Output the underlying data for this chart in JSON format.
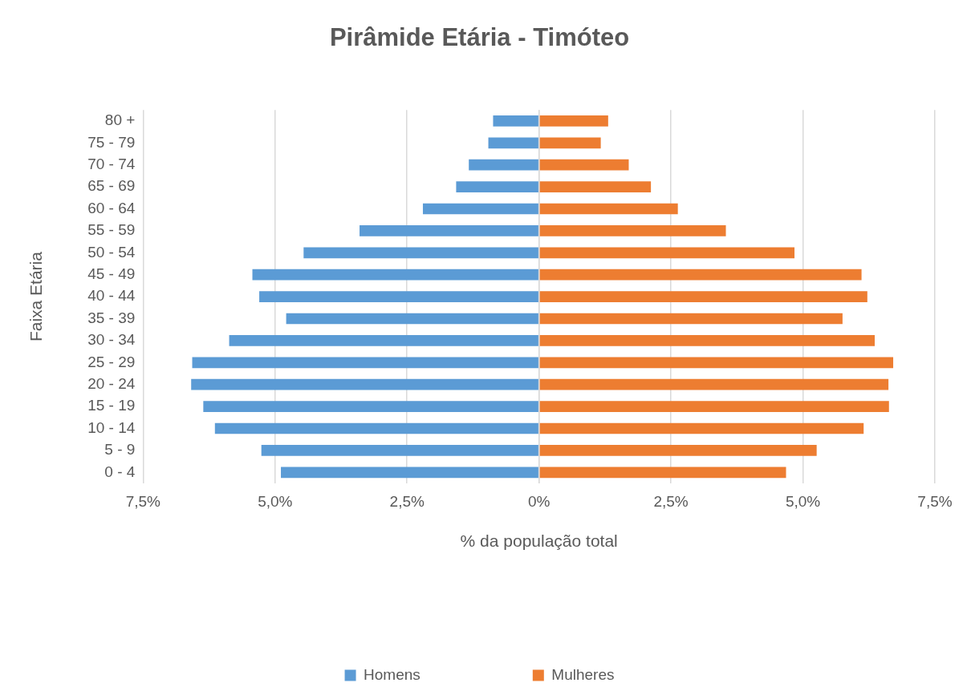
{
  "chart_data": {
    "type": "bar",
    "orientation": "horizontal",
    "stacked": true,
    "title": "Pirâmide Etária - Timóteo",
    "xlabel": "% da população total",
    "ylabel": "Faixa Etária",
    "categories": [
      "80 +",
      "75 - 79",
      "70 - 74",
      "65 - 69",
      "60 - 64",
      "55 - 59",
      "50 - 54",
      "45 - 49",
      "40 - 44",
      "35 - 39",
      "30 - 34",
      "25 - 29",
      "20 - 24",
      "15 - 19",
      "10 - 14",
      "5 - 9",
      "0 - 4"
    ],
    "series": [
      {
        "name": "Homens",
        "color": "#5b9bd5",
        "values": [
          -0.87,
          -0.96,
          -1.33,
          -1.57,
          -2.2,
          -3.4,
          -4.46,
          -5.43,
          -5.3,
          -4.79,
          -5.87,
          -6.57,
          -6.59,
          -6.36,
          -6.14,
          -5.26,
          -4.89
        ]
      },
      {
        "name": "Mulheres",
        "color": "#ed7d31",
        "values": [
          1.31,
          1.17,
          1.7,
          2.12,
          2.63,
          3.54,
          4.84,
          6.11,
          6.22,
          5.75,
          6.36,
          6.71,
          6.62,
          6.63,
          6.15,
          5.26,
          4.68
        ]
      }
    ],
    "xlim": [
      -7.5,
      7.5
    ],
    "xticks": [
      {
        "value": -7.5,
        "label": "7,5%"
      },
      {
        "value": -5,
        "label": "5,0%"
      },
      {
        "value": -2.5,
        "label": "2,5%"
      },
      {
        "value": 0,
        "label": "0%"
      },
      {
        "value": 2.5,
        "label": "2,5%"
      },
      {
        "value": 5,
        "label": "5,0%"
      },
      {
        "value": 7.5,
        "label": "7,5%"
      }
    ],
    "grid": "x",
    "legend": "bottom"
  }
}
